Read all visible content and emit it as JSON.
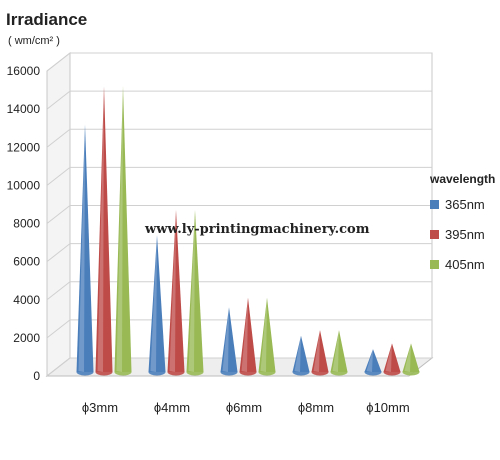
{
  "chart_data": {
    "type": "bar",
    "mark_shape": "cone",
    "ylabel": "Irradiance",
    "yunit": "( wm/cm² )",
    "ylim": [
      0,
      16000
    ],
    "yticks": [
      "0",
      "2000",
      "4000",
      "6000",
      "8000",
      "10000",
      "12000",
      "14000",
      "16000"
    ],
    "categories": [
      "ϕ3mm",
      "ϕ4mm",
      "ϕ6mm",
      "ϕ8mm",
      "ϕ10mm"
    ],
    "legend_title": "wavelength",
    "legend_position": "right",
    "grid": true,
    "series": [
      {
        "name": "365nm",
        "color": "#4a7ebb",
        "values": [
          13000,
          7200,
          3400,
          1900,
          1200
        ]
      },
      {
        "name": "395nm",
        "color": "#be4b48",
        "values": [
          15000,
          8500,
          3900,
          2200,
          1500
        ]
      },
      {
        "name": "405nm",
        "color": "#98b954",
        "values": [
          15000,
          8500,
          3900,
          2200,
          1500
        ]
      }
    ]
  },
  "watermark": "www.ly-printingmachinery.com"
}
